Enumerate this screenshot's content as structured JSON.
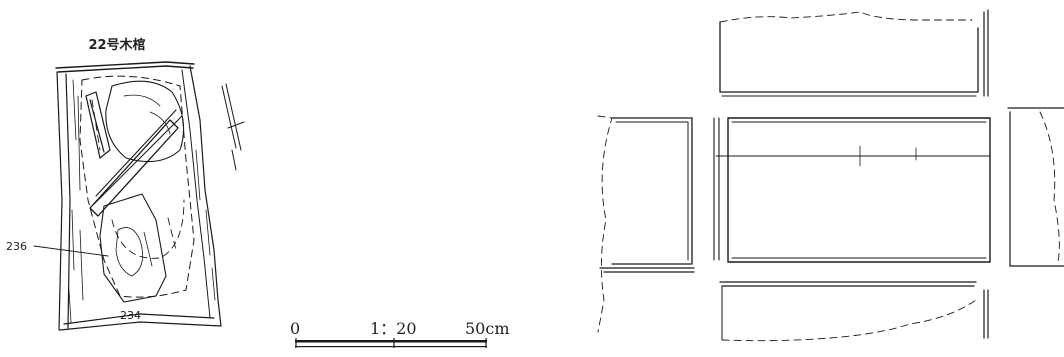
{
  "coffin_plan": {
    "title": "22号木棺",
    "labels": [
      "236",
      "234"
    ]
  },
  "scale_bar": {
    "start": "0",
    "ratio": "1：20",
    "end": "50cm"
  }
}
